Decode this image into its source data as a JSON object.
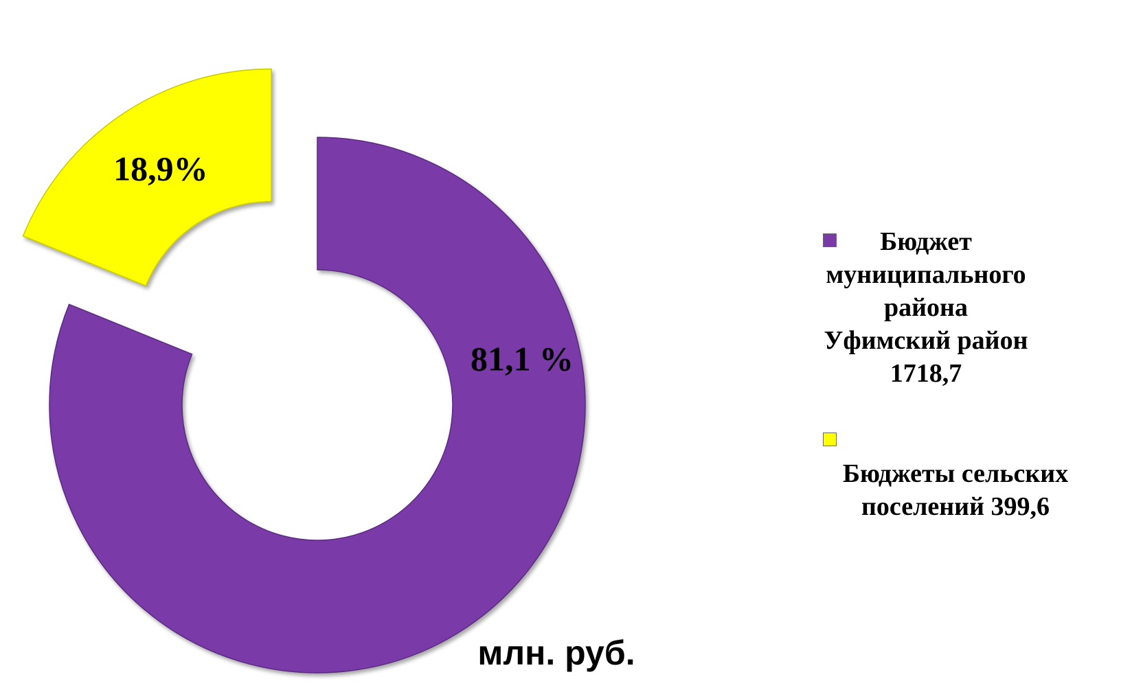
{
  "chart_data": {
    "type": "pie",
    "donut": true,
    "unit": "млн. руб.",
    "slices": [
      {
        "name": "Бюджет муниципального района Уфимский район 1718,7",
        "value": 1718.7,
        "percent_label": "81,1 %",
        "color": "#7a3aa8",
        "exploded": false
      },
      {
        "name": "Бюджеты сельских поселений 399,6",
        "value": 399.6,
        "percent_label": "18,9%",
        "color": "#ffff00",
        "exploded": true
      }
    ],
    "legend_position": "right"
  },
  "legend": {
    "items": [
      {
        "label": "Бюджет\nмуниципального\nрайона\nУфимский район\n1718,7",
        "color": "#7a3aa8"
      },
      {
        "label": "Бюджеты сельских\nпоселений 399,6",
        "color": "#ffff00"
      }
    ]
  }
}
